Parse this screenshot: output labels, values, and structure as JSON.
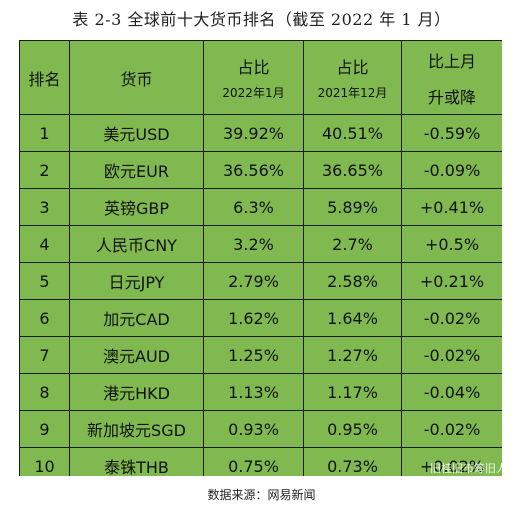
{
  "caption": "表 2-3  全球前十大货币排名（截至 2022 年 1 月）",
  "headers": {
    "rank": "排名",
    "currency": "货币",
    "share_jan2022_title": "占比",
    "share_jan2022_sub": "2022年1月",
    "share_dec2021_title": "占比",
    "share_dec2021_sub": "2021年12月",
    "change_line1": "比上月",
    "change_line2": "升或降"
  },
  "rows": [
    {
      "rank": "1",
      "currency": "美元USD",
      "jan2022": "39.92%",
      "dec2021": "40.51%",
      "change": "-0.59%"
    },
    {
      "rank": "2",
      "currency": "欧元EUR",
      "jan2022": "36.56%",
      "dec2021": "36.65%",
      "change": "-0.09%"
    },
    {
      "rank": "3",
      "currency": "英镑GBP",
      "jan2022": "6.3%",
      "dec2021": "5.89%",
      "change": "+0.41%"
    },
    {
      "rank": "4",
      "currency": "人民币CNY",
      "jan2022": "3.2%",
      "dec2021": "2.7%",
      "change": "+0.5%"
    },
    {
      "rank": "5",
      "currency": "日元JPY",
      "jan2022": "2.79%",
      "dec2021": "2.58%",
      "change": "+0.21%"
    },
    {
      "rank": "6",
      "currency": "加元CAD",
      "jan2022": "1.62%",
      "dec2021": "1.64%",
      "change": "-0.02%"
    },
    {
      "rank": "7",
      "currency": "澳元AUD",
      "jan2022": "1.25%",
      "dec2021": "1.27%",
      "change": "-0.02%"
    },
    {
      "rank": "8",
      "currency": "港元HKD",
      "jan2022": "1.13%",
      "dec2021": "1.17%",
      "change": "-0.04%"
    },
    {
      "rank": "9",
      "currency": "新加坡元SGD",
      "jan2022": "0.93%",
      "dec2021": "0.95%",
      "change": "-0.02%"
    },
    {
      "rank": "10",
      "currency": "泰铢THB",
      "jan2022": "0.75%",
      "dec2021": "0.73%",
      "change": "+0.02%"
    }
  ],
  "source": "数据来源：网易新闻",
  "watermark": "旧桂旧市筹旧人",
  "colors": {
    "table_background": "#7fb94f",
    "border": "#1b1b1b"
  }
}
